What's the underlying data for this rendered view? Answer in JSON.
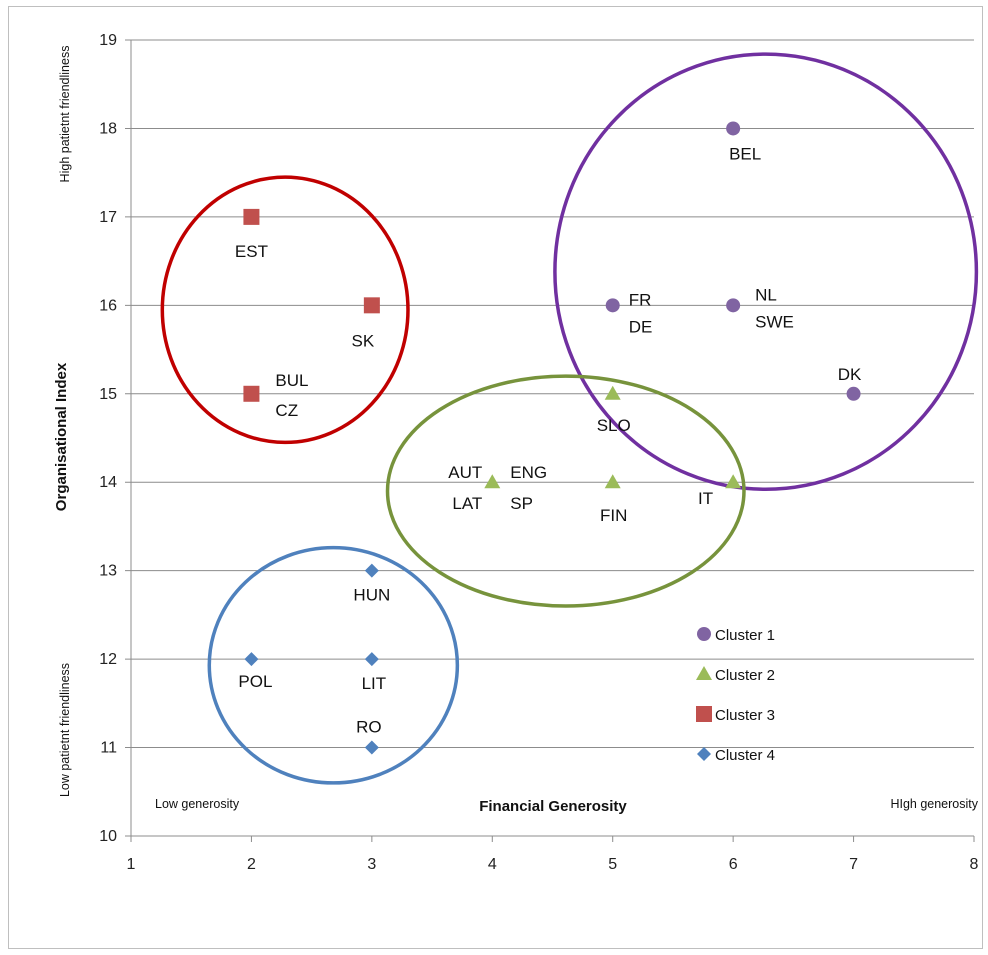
{
  "chart_data": {
    "type": "scatter",
    "xlabel": "Financial Generosity",
    "ylabel": "Organisational Index",
    "xlim": [
      1,
      8
    ],
    "ylim": [
      10,
      19
    ],
    "x_ticks": [
      1,
      2,
      3,
      4,
      5,
      6,
      7,
      8
    ],
    "y_ticks": [
      10,
      11,
      12,
      13,
      14,
      15,
      16,
      17,
      18,
      19
    ],
    "x_low_note": "Low generosity",
    "x_high_note": "HIgh generosity",
    "y_low_note": "Low patietnt friendliness",
    "y_high_note": "High patietnt friendliness",
    "grid": "horizontal",
    "legend_position": "bottom-right",
    "series": [
      {
        "name": "Cluster 1",
        "marker": "circle",
        "color": "#8064A2",
        "ring_color": "#7030A0",
        "points": [
          {
            "x": 6,
            "y": 18,
            "labels": [
              "BEL"
            ]
          },
          {
            "x": 5,
            "y": 16,
            "labels": [
              "FR",
              "DE"
            ]
          },
          {
            "x": 6,
            "y": 16,
            "labels": [
              "NL",
              "SWE"
            ]
          },
          {
            "x": 7,
            "y": 15,
            "labels": [
              "DK"
            ]
          }
        ]
      },
      {
        "name": "Cluster 2",
        "marker": "triangle",
        "color": "#9BBB59",
        "ring_color": "#77933C",
        "points": [
          {
            "x": 5,
            "y": 15,
            "labels": [
              "SLO"
            ]
          },
          {
            "x": 4,
            "y": 14,
            "labels": [
              "AUT",
              "LAT",
              "ENG",
              "SP"
            ]
          },
          {
            "x": 5,
            "y": 14,
            "labels": [
              "FIN"
            ]
          },
          {
            "x": 6,
            "y": 14,
            "labels": [
              "IT"
            ]
          }
        ]
      },
      {
        "name": "Cluster 3",
        "marker": "square",
        "color": "#C0504D",
        "ring_color": "#C00000",
        "points": [
          {
            "x": 2,
            "y": 17,
            "labels": [
              "EST"
            ]
          },
          {
            "x": 3,
            "y": 16,
            "labels": [
              "SK"
            ]
          },
          {
            "x": 2,
            "y": 15,
            "labels": [
              "BUL",
              "CZ"
            ]
          }
        ]
      },
      {
        "name": "Cluster 4",
        "marker": "diamond",
        "color": "#4F81BD",
        "ring_color": "#4F81BD",
        "points": [
          {
            "x": 3,
            "y": 13,
            "labels": [
              "HUN"
            ]
          },
          {
            "x": 2,
            "y": 12,
            "labels": [
              "POL"
            ]
          },
          {
            "x": 3,
            "y": 12,
            "labels": [
              "LIT"
            ]
          },
          {
            "x": 3,
            "y": 11,
            "labels": [
              "RO"
            ]
          }
        ]
      }
    ]
  }
}
